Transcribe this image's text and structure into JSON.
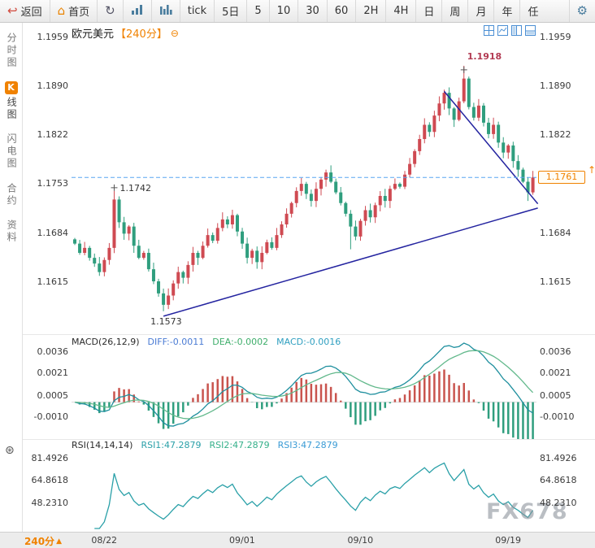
{
  "toolbar": {
    "back_label": "返回",
    "home_label": "首页",
    "tick_label": "tick",
    "periods": [
      "5日",
      "5",
      "10",
      "30",
      "60",
      "2H",
      "4H",
      "日",
      "周",
      "月",
      "年",
      "任"
    ]
  },
  "icons": {
    "back": "↩",
    "home": "⌂",
    "refresh": "↻",
    "gear": "⚙",
    "indicator_settings": "⊛",
    "collapse": "⊖",
    "price_up_arrow": "↑",
    "footer_up": "▲"
  },
  "sidebar": {
    "items": [
      {
        "label": "分时图"
      },
      {
        "badge": "K",
        "label": "线图"
      },
      {
        "label": "闪电图"
      },
      {
        "label": "合约"
      },
      {
        "label": "资料"
      }
    ]
  },
  "chart_header": {
    "symbol": "欧元美元",
    "period_tag": "【240分】"
  },
  "macd_panel": {
    "label": "MACD(26,12,9)",
    "diff": "DIFF:-0.0011",
    "dea": "DEA:-0.0002",
    "macd": "MACD:-0.0016"
  },
  "rsi_panel": {
    "label": "RSI(14,14,14)",
    "rsi1": "RSI1:47.2879",
    "rsi2": "RSI2:47.2879",
    "rsi3": "RSI3:47.2879"
  },
  "footer": {
    "period_label": "240分"
  },
  "watermark": "FX678",
  "chart_data": {
    "type": "candlestick",
    "interval_minutes": 240,
    "y_ticks": [
      "1.1959",
      "1.1890",
      "1.1822",
      "1.1753",
      "1.1684",
      "1.1615"
    ],
    "macd_ticks": [
      "0.0036",
      "0.0021",
      "0.0005",
      "-0.0010"
    ],
    "rsi_ticks": [
      "81.4926",
      "64.8618",
      "48.2310"
    ],
    "x_labels": [
      {
        "text": "08/22",
        "bar": 6
      },
      {
        "text": "09/01",
        "bar": 34
      },
      {
        "text": "09/10",
        "bar": 58
      },
      {
        "text": "09/19",
        "bar": 88
      }
    ],
    "current": {
      "value": 1.1761,
      "text": "1.1761"
    },
    "annotations": {
      "spike": {
        "text": "1.1742",
        "bar": 8,
        "price": 1.1742
      },
      "peak": {
        "text": "1.1918",
        "bar": 79,
        "price": 1.1918
      },
      "trough": {
        "text": "1.1573",
        "bar": 18,
        "price": 1.1573
      }
    },
    "trendlines": [
      {
        "b1": 18,
        "p1": 1.1566,
        "b2": 94,
        "p2": 1.1718
      },
      {
        "b1": 75,
        "p1": 1.1882,
        "b2": 94,
        "p2": 1.1724
      }
    ],
    "indicators": {
      "macd": {
        "fast": 12,
        "slow": 26,
        "signal": 9,
        "diff": -0.0011,
        "dea": -0.0002,
        "macd": -0.0016
      },
      "rsi": {
        "period": 14,
        "rsi1": 47.2879,
        "rsi2": 47.2879,
        "rsi3": 47.2879
      }
    },
    "closes": [
      1.1668,
      1.1655,
      1.1662,
      1.1648,
      1.164,
      1.1628,
      1.1645,
      1.1662,
      1.173,
      1.1698,
      1.1682,
      1.1692,
      1.1665,
      1.1648,
      1.1655,
      1.1632,
      1.1615,
      1.1598,
      1.1582,
      1.1595,
      1.1612,
      1.1628,
      1.162,
      1.1638,
      1.1655,
      1.1648,
      1.1665,
      1.168,
      1.1672,
      1.169,
      1.1702,
      1.1695,
      1.1708,
      1.1685,
      1.1668,
      1.1648,
      1.1658,
      1.1642,
      1.1655,
      1.167,
      1.1662,
      1.168,
      1.1695,
      1.171,
      1.1725,
      1.1742,
      1.1752,
      1.1738,
      1.1728,
      1.1745,
      1.1758,
      1.1768,
      1.1755,
      1.174,
      1.1725,
      1.171,
      1.1692,
      1.1678,
      1.17,
      1.1715,
      1.1705,
      1.1722,
      1.1735,
      1.1728,
      1.1745,
      1.1752,
      1.1748,
      1.1765,
      1.178,
      1.1798,
      1.1815,
      1.1835,
      1.1825,
      1.1848,
      1.1865,
      1.188,
      1.1858,
      1.1842,
      1.1868,
      1.19,
      1.186,
      1.1845,
      1.1862,
      1.1838,
      1.1822,
      1.1835,
      1.181,
      1.1796,
      1.1806,
      1.1784,
      1.1772,
      1.1755,
      1.174,
      1.1761
    ],
    "wick_overrides": {
      "high": {
        "8": 1.1742,
        "51": 1.1772,
        "79": 1.1918
      },
      "low": {
        "18": 1.1573,
        "56": 1.166,
        "92": 1.1728
      }
    },
    "colors": {
      "up": "#cf4a52",
      "down": "#2f9e7e",
      "trend": "#2424a0",
      "dashed": "#58a6f2",
      "accent": "#f08200",
      "diff_line": "#1e8f9e",
      "dea_line": "#63b98c",
      "rsi_line": "#2aa0a8",
      "hist_pos": "#c9544e",
      "hist_neg": "#2f9e7e"
    }
  }
}
